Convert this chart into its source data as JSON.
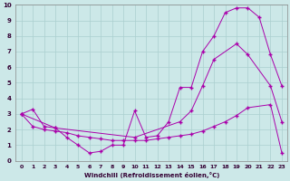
{
  "xlabel": "Windchill (Refroidissement éolien,°C)",
  "bg_color": "#cce8e8",
  "grid_color": "#aacfcf",
  "line_color": "#aa00aa",
  "xlim": [
    -0.5,
    23.5
  ],
  "ylim": [
    0,
    10
  ],
  "line1_x": [
    0,
    1,
    2,
    3,
    4,
    5,
    6,
    7,
    8,
    9,
    10,
    11,
    12,
    13,
    14,
    15,
    16,
    17,
    18,
    19,
    20,
    21,
    22,
    23
  ],
  "line1_y": [
    3.0,
    3.3,
    2.2,
    2.1,
    1.5,
    1.0,
    0.5,
    0.6,
    1.0,
    1.0,
    3.2,
    1.5,
    1.6,
    2.5,
    4.7,
    4.7,
    7.0,
    8.0,
    9.5,
    9.8,
    9.8,
    9.2,
    6.8,
    4.8
  ],
  "line2_x": [
    0,
    3,
    10,
    14,
    15,
    16,
    17,
    19,
    20,
    22,
    23
  ],
  "line2_y": [
    3.0,
    2.1,
    1.5,
    2.5,
    3.2,
    4.8,
    6.5,
    7.5,
    6.8,
    4.8,
    2.5
  ],
  "line3_x": [
    0,
    1,
    2,
    3,
    4,
    5,
    6,
    7,
    8,
    9,
    10,
    11,
    12,
    13,
    14,
    15,
    16,
    17,
    18,
    19,
    20,
    22,
    23
  ],
  "line3_y": [
    3.0,
    2.2,
    2.0,
    1.9,
    1.8,
    1.6,
    1.5,
    1.4,
    1.3,
    1.3,
    1.3,
    1.3,
    1.4,
    1.5,
    1.6,
    1.7,
    1.9,
    2.2,
    2.5,
    2.9,
    3.4,
    3.6,
    0.5
  ]
}
